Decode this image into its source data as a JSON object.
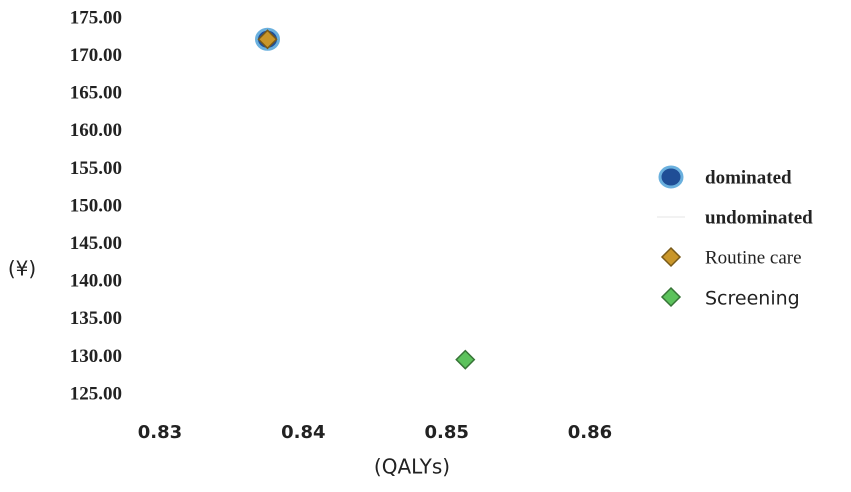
{
  "chart_data": {
    "type": "scatter",
    "xlabel": "(QALYs)",
    "ylabel": "(¥)",
    "xlim": [
      0.83,
      0.86
    ],
    "xticks": [
      0.83,
      0.84,
      0.85,
      0.86
    ],
    "ylim": [
      125,
      175
    ],
    "yticks": [
      {
        "value": 125,
        "label": "125.00"
      },
      {
        "value": 130,
        "label": "130.00"
      },
      {
        "value": 135,
        "label": "135.00"
      },
      {
        "value": 140,
        "label": "140.00"
      },
      {
        "value": 145,
        "label": "145.00"
      },
      {
        "value": 150,
        "label": "150.00"
      },
      {
        "value": 155,
        "label": "155.00"
      },
      {
        "value": 160,
        "label": "160.00"
      },
      {
        "value": 165,
        "label": "165.00"
      },
      {
        "value": 170,
        "label": "170.00"
      },
      {
        "value": 175,
        "label": "175.00"
      }
    ],
    "grid": false,
    "legend": "right",
    "series": [
      {
        "name": "dominated",
        "color": "#1f4e96",
        "marker": "circle",
        "x": [
          0.8375
        ],
        "values": [
          172.3
        ]
      },
      {
        "name": "undominated",
        "color": "#e6e6e6",
        "marker": "line",
        "x": [],
        "values": []
      },
      {
        "name": "Routine care",
        "color": "#c9962a",
        "marker": "diamond",
        "x": [
          0.8375
        ],
        "values": [
          172.3
        ]
      },
      {
        "name": "Screening",
        "color": "#5cc25c",
        "marker": "diamond",
        "x": [
          0.8513
        ],
        "values": [
          129.7
        ]
      }
    ]
  }
}
